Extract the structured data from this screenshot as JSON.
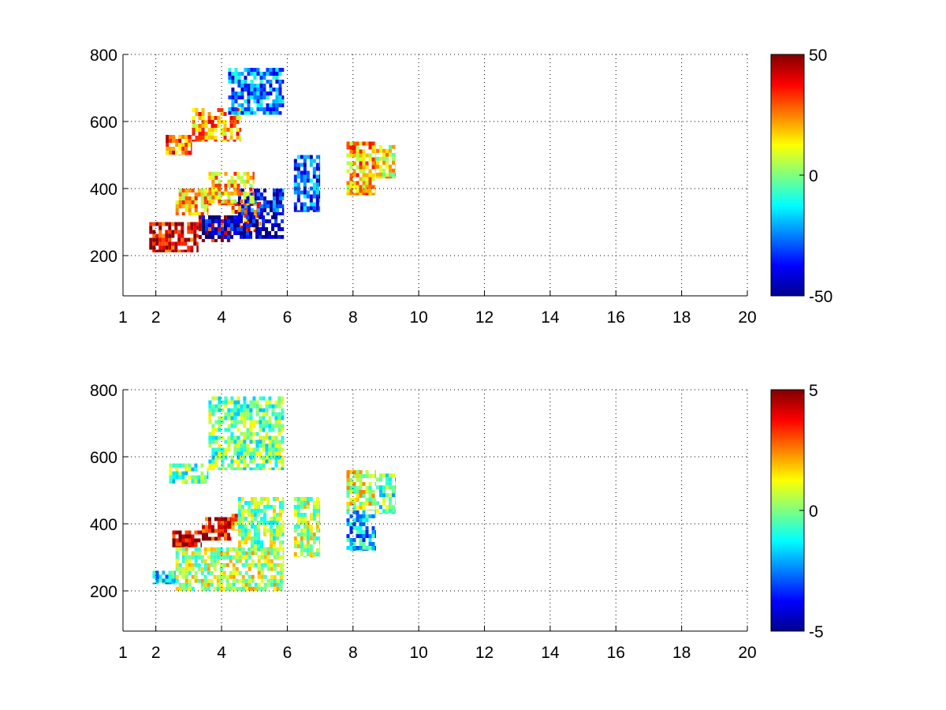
{
  "figure": {
    "background": "#ffffff"
  },
  "chart_data": [
    {
      "type": "heatmap",
      "title": "",
      "xlabel": "",
      "ylabel": "",
      "xlim": [
        1,
        20
      ],
      "ylim": [
        80,
        800
      ],
      "x_ticks": [
        1,
        2,
        4,
        6,
        8,
        10,
        12,
        14,
        16,
        18,
        20
      ],
      "y_ticks": [
        200,
        400,
        600,
        800
      ],
      "grid": true,
      "grid_style": "dotted",
      "colormap": "jet",
      "colorbar": {
        "placement": "right",
        "min": -50,
        "max": 50,
        "ticks": [
          50,
          0,
          -50
        ]
      },
      "missing_value_color": "#ffffff",
      "regions": [
        {
          "x": [
            1.8,
            3.3
          ],
          "y": [
            210,
            300
          ],
          "value": 40
        },
        {
          "x": [
            3.3,
            4.3
          ],
          "y": [
            240,
            320
          ],
          "value": 42
        },
        {
          "x": [
            4.3,
            5.2
          ],
          "y": [
            270,
            360
          ],
          "value": 30
        },
        {
          "x": [
            3.4,
            5.9
          ],
          "y": [
            250,
            320
          ],
          "value": -45
        },
        {
          "x": [
            4.5,
            5.9
          ],
          "y": [
            320,
            400
          ],
          "value": -35
        },
        {
          "x": [
            2.6,
            3.6
          ],
          "y": [
            320,
            400
          ],
          "value": 20
        },
        {
          "x": [
            3.6,
            5.0
          ],
          "y": [
            350,
            450
          ],
          "value": 18
        },
        {
          "x": [
            2.3,
            3.1
          ],
          "y": [
            500,
            560
          ],
          "value": 28
        },
        {
          "x": [
            3.1,
            4.6
          ],
          "y": [
            540,
            640
          ],
          "value": 22
        },
        {
          "x": [
            4.2,
            5.9
          ],
          "y": [
            620,
            760
          ],
          "value": -25
        },
        {
          "x": [
            6.2,
            7.0
          ],
          "y": [
            330,
            500
          ],
          "value": -30
        },
        {
          "x": [
            7.8,
            8.7
          ],
          "y": [
            380,
            540
          ],
          "value": 20
        },
        {
          "x": [
            8.7,
            9.3
          ],
          "y": [
            430,
            530
          ],
          "value": 10
        }
      ]
    },
    {
      "type": "heatmap",
      "title": "",
      "xlabel": "",
      "ylabel": "",
      "xlim": [
        1,
        20
      ],
      "ylim": [
        80,
        800
      ],
      "x_ticks": [
        1,
        2,
        4,
        6,
        8,
        10,
        12,
        14,
        16,
        18,
        20
      ],
      "y_ticks": [
        200,
        400,
        600,
        800
      ],
      "grid": true,
      "grid_style": "dotted",
      "colormap": "jet",
      "colorbar": {
        "placement": "right",
        "min": -5,
        "max": 5,
        "ticks": [
          5,
          0,
          -5
        ]
      },
      "missing_value_color": "#ffffff",
      "regions": [
        {
          "x": [
            2.5,
            3.4
          ],
          "y": [
            330,
            380
          ],
          "value": 4.5
        },
        {
          "x": [
            3.4,
            4.3
          ],
          "y": [
            350,
            420
          ],
          "value": 4.0
        },
        {
          "x": [
            4.3,
            4.7
          ],
          "y": [
            380,
            430
          ],
          "value": 3.0
        },
        {
          "x": [
            1.9,
            2.6
          ],
          "y": [
            220,
            260
          ],
          "value": -1.5
        },
        {
          "x": [
            2.6,
            5.9
          ],
          "y": [
            200,
            330
          ],
          "value": 0.6
        },
        {
          "x": [
            4.5,
            5.9
          ],
          "y": [
            320,
            480
          ],
          "value": 0.2
        },
        {
          "x": [
            2.4,
            3.6
          ],
          "y": [
            520,
            580
          ],
          "value": -0.3
        },
        {
          "x": [
            3.6,
            5.9
          ],
          "y": [
            560,
            780
          ],
          "value": -0.2
        },
        {
          "x": [
            6.2,
            7.0
          ],
          "y": [
            300,
            480
          ],
          "value": 0.5
        },
        {
          "x": [
            7.8,
            8.7
          ],
          "y": [
            320,
            440
          ],
          "value": -1.8
        },
        {
          "x": [
            7.8,
            8.7
          ],
          "y": [
            440,
            560
          ],
          "value": 0.8
        },
        {
          "x": [
            8.7,
            9.3
          ],
          "y": [
            430,
            550
          ],
          "value": -0.5
        }
      ]
    }
  ]
}
